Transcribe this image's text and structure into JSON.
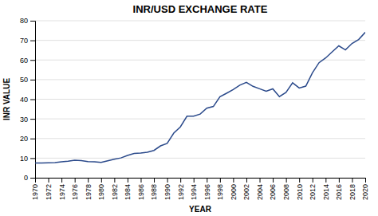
{
  "chart_data": {
    "type": "line",
    "title": "INR/USD EXCHANGE RATE",
    "xlabel": "YEAR",
    "ylabel": "INR VALUE",
    "color": "#2b4a8b",
    "x": [
      1970,
      1971,
      1972,
      1973,
      1974,
      1975,
      1976,
      1977,
      1978,
      1979,
      1980,
      1981,
      1982,
      1983,
      1984,
      1985,
      1986,
      1987,
      1988,
      1989,
      1990,
      1991,
      1992,
      1993,
      1994,
      1995,
      1996,
      1997,
      1998,
      1999,
      2000,
      2001,
      2002,
      2003,
      2004,
      2005,
      2006,
      2007,
      2008,
      2009,
      2010,
      2011,
      2012,
      2013,
      2014,
      2015,
      2016,
      2017,
      2018,
      2019,
      2020
    ],
    "values": [
      7.5,
      7.49,
      7.6,
      7.74,
      8.1,
      8.38,
      8.96,
      8.74,
      8.19,
      8.13,
      7.86,
      8.66,
      9.46,
      10.1,
      11.36,
      12.37,
      12.61,
      12.96,
      13.92,
      16.23,
      17.5,
      22.74,
      25.92,
      31.37,
      31.37,
      32.43,
      35.43,
      36.31,
      41.26,
      43.06,
      44.94,
      47.19,
      48.61,
      46.58,
      45.32,
      44.1,
      45.31,
      41.35,
      43.51,
      48.41,
      45.73,
      46.67,
      53.44,
      58.6,
      61.03,
      64.15,
      67.19,
      65.12,
      68.4,
      70.42,
      74.1
    ],
    "xlim": [
      1970,
      2020
    ],
    "xticks": [
      1970,
      1972,
      1974,
      1976,
      1978,
      1980,
      1982,
      1984,
      1986,
      1988,
      1990,
      1992,
      1994,
      1996,
      1998,
      2000,
      2002,
      2004,
      2006,
      2008,
      2010,
      2012,
      2014,
      2016,
      2018,
      2020
    ],
    "ylim": [
      0,
      80
    ],
    "yticks": [
      0,
      10,
      20,
      30,
      40,
      50,
      60,
      70,
      80
    ],
    "grid": true
  }
}
